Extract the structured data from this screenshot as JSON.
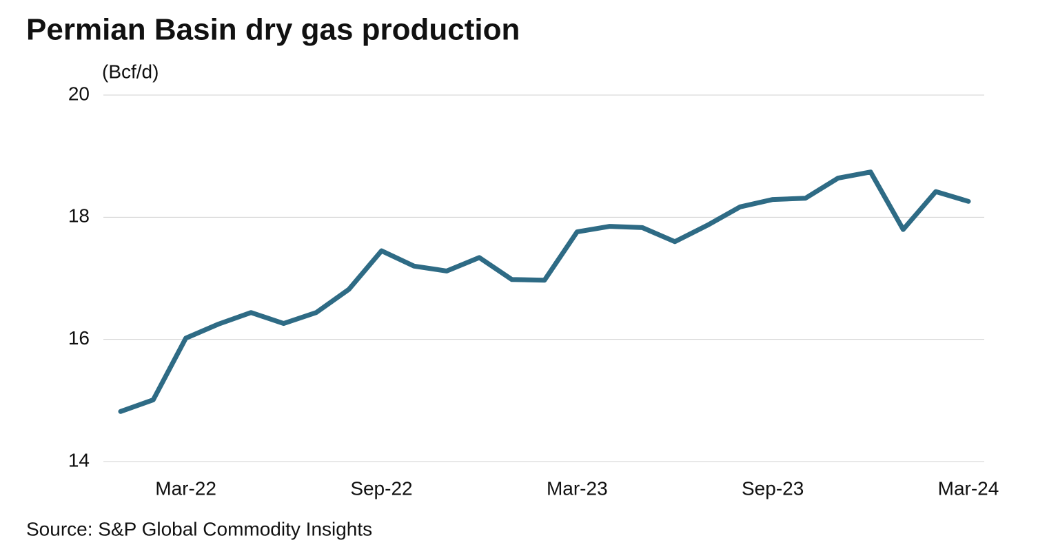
{
  "chart_data": {
    "type": "line",
    "title": "Permian Basin dry gas production",
    "y_label": "(Bcf/d)",
    "source": "Source: S&P Global Commodity Insights",
    "categories": [
      null,
      null,
      "Mar-22",
      null,
      null,
      null,
      null,
      null,
      "Sep-22",
      null,
      null,
      null,
      null,
      null,
      "Mar-23",
      null,
      null,
      null,
      null,
      null,
      "Sep-23",
      null,
      null,
      null,
      null,
      null,
      "Mar-24"
    ],
    "values": [
      14.82,
      15.01,
      16.02,
      16.25,
      16.44,
      16.26,
      16.44,
      16.82,
      17.45,
      17.2,
      17.12,
      17.34,
      16.98,
      16.97,
      17.76,
      17.85,
      17.83,
      17.6,
      17.87,
      18.17,
      18.29,
      18.31,
      18.64,
      18.74,
      17.8,
      18.42,
      18.26
    ],
    "color": "#2e6b85",
    "ylim": [
      14,
      20
    ],
    "yticks": [
      14,
      16,
      18,
      20
    ],
    "grid": true
  }
}
